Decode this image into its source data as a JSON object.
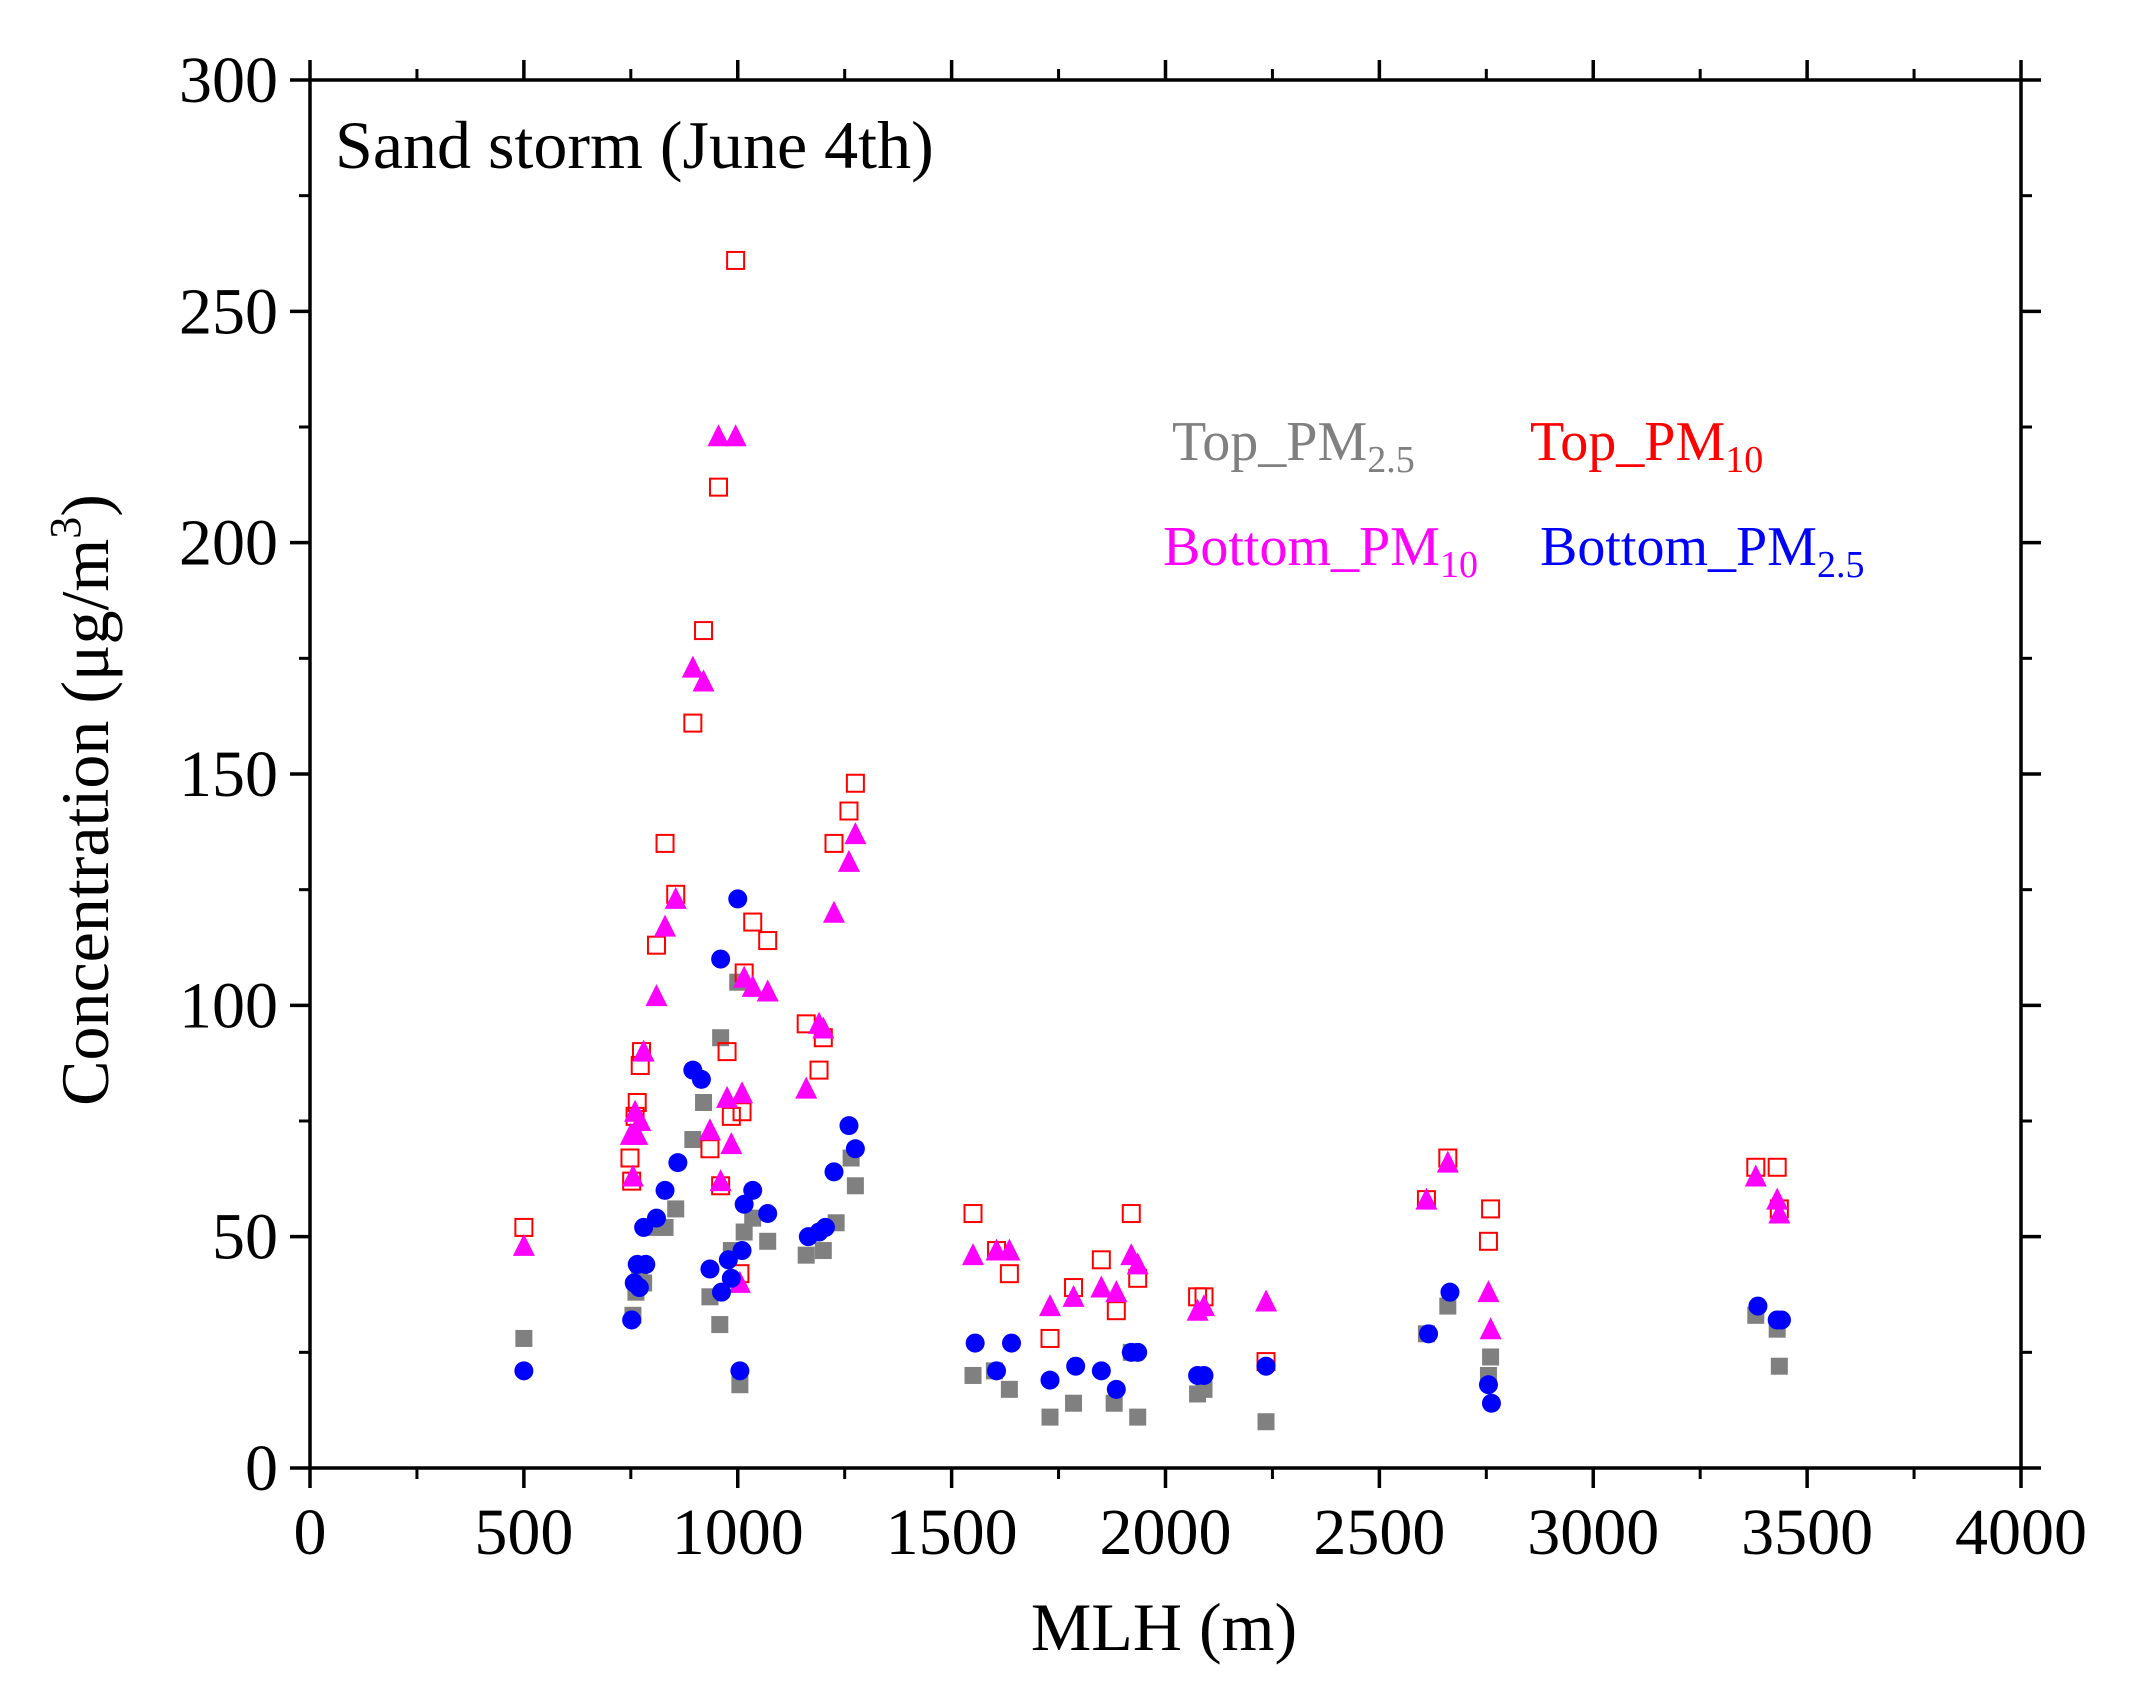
{
  "chart_data": {
    "type": "scatter",
    "title": "Sand storm (June 4th)",
    "xlabel": "MLH (m)",
    "ylabel": "Concentration (μg/m³)",
    "ylabel_parts": {
      "main": "Concentration (μg/m",
      "sup": "3",
      "close": ")"
    },
    "xlim": [
      0,
      4000
    ],
    "ylim": [
      0,
      300
    ],
    "xticks": [
      0,
      500,
      1000,
      1500,
      2000,
      2500,
      3000,
      3500,
      4000
    ],
    "yticks": [
      0,
      50,
      100,
      150,
      200,
      250,
      300
    ],
    "grid": false,
    "legend_position": "upper-center",
    "series": [
      {
        "name": "Top_PM2.5",
        "label": {
          "main": "Top_PM",
          "sub": "2.5"
        },
        "color": "#808080",
        "marker": "filled-square",
        "points": [
          [
            500,
            28
          ],
          [
            755,
            33
          ],
          [
            762,
            38
          ],
          [
            770,
            42
          ],
          [
            780,
            40
          ],
          [
            810,
            52
          ],
          [
            830,
            52
          ],
          [
            855,
            56
          ],
          [
            895,
            71
          ],
          [
            920,
            79
          ],
          [
            935,
            37
          ],
          [
            958,
            31
          ],
          [
            960,
            93
          ],
          [
            985,
            47
          ],
          [
            1000,
            105
          ],
          [
            1005,
            18
          ],
          [
            1015,
            51
          ],
          [
            1035,
            54
          ],
          [
            1070,
            49
          ],
          [
            1160,
            46
          ],
          [
            1200,
            47
          ],
          [
            1230,
            53
          ],
          [
            1265,
            67
          ],
          [
            1275,
            61
          ],
          [
            1550,
            20
          ],
          [
            1600,
            21
          ],
          [
            1635,
            17
          ],
          [
            1730,
            11
          ],
          [
            1785,
            14
          ],
          [
            1880,
            14
          ],
          [
            1920,
            25
          ],
          [
            1935,
            11
          ],
          [
            2075,
            16
          ],
          [
            2090,
            17
          ],
          [
            2235,
            10
          ],
          [
            2610,
            29
          ],
          [
            2660,
            35
          ],
          [
            2755,
            20
          ],
          [
            2760,
            24
          ],
          [
            3380,
            33
          ],
          [
            3430,
            30
          ],
          [
            3435,
            22
          ]
        ]
      },
      {
        "name": "Top_PM10",
        "label": {
          "main": "Top_PM",
          "sub": "10"
        },
        "color": "#ff0000",
        "marker": "open-square",
        "points": [
          [
            500,
            52
          ],
          [
            748,
            67
          ],
          [
            752,
            62
          ],
          [
            760,
            76
          ],
          [
            765,
            79
          ],
          [
            772,
            87
          ],
          [
            775,
            90
          ],
          [
            810,
            113
          ],
          [
            830,
            135
          ],
          [
            855,
            124
          ],
          [
            895,
            161
          ],
          [
            920,
            181
          ],
          [
            935,
            69
          ],
          [
            955,
            212
          ],
          [
            960,
            61
          ],
          [
            975,
            90
          ],
          [
            985,
            76
          ],
          [
            995,
            261
          ],
          [
            1005,
            42
          ],
          [
            1010,
            77
          ],
          [
            1015,
            107
          ],
          [
            1035,
            118
          ],
          [
            1070,
            114
          ],
          [
            1160,
            96
          ],
          [
            1190,
            86
          ],
          [
            1200,
            93
          ],
          [
            1225,
            135
          ],
          [
            1260,
            142
          ],
          [
            1275,
            148
          ],
          [
            1550,
            55
          ],
          [
            1605,
            47
          ],
          [
            1635,
            42
          ],
          [
            1730,
            28
          ],
          [
            1785,
            39
          ],
          [
            1850,
            45
          ],
          [
            1885,
            34
          ],
          [
            1920,
            55
          ],
          [
            1935,
            41
          ],
          [
            2075,
            37
          ],
          [
            2090,
            37
          ],
          [
            2235,
            23
          ],
          [
            2610,
            58
          ],
          [
            2660,
            67
          ],
          [
            2755,
            49
          ],
          [
            2760,
            56
          ],
          [
            3380,
            65
          ],
          [
            3430,
            65
          ],
          [
            3435,
            56
          ]
        ]
      },
      {
        "name": "Bottom_PM10",
        "label": {
          "main": "Bottom_PM",
          "sub": "10"
        },
        "color": "#ff00ff",
        "marker": "filled-triangle",
        "points": [
          [
            500,
            48
          ],
          [
            750,
            72
          ],
          [
            755,
            63
          ],
          [
            760,
            77
          ],
          [
            765,
            72
          ],
          [
            772,
            75
          ],
          [
            780,
            90
          ],
          [
            810,
            102
          ],
          [
            830,
            117
          ],
          [
            855,
            123
          ],
          [
            895,
            173
          ],
          [
            920,
            170
          ],
          [
            935,
            73
          ],
          [
            955,
            223
          ],
          [
            960,
            62
          ],
          [
            975,
            80
          ],
          [
            985,
            70
          ],
          [
            995,
            223
          ],
          [
            1005,
            40
          ],
          [
            1010,
            81
          ],
          [
            1015,
            106
          ],
          [
            1035,
            104
          ],
          [
            1070,
            103
          ],
          [
            1160,
            82
          ],
          [
            1190,
            96
          ],
          [
            1200,
            95
          ],
          [
            1225,
            120
          ],
          [
            1260,
            131
          ],
          [
            1275,
            137
          ],
          [
            1550,
            46
          ],
          [
            1605,
            47
          ],
          [
            1635,
            47
          ],
          [
            1730,
            35
          ],
          [
            1785,
            37
          ],
          [
            1850,
            39
          ],
          [
            1885,
            38
          ],
          [
            1920,
            46
          ],
          [
            1935,
            44
          ],
          [
            2075,
            34
          ],
          [
            2090,
            35
          ],
          [
            2235,
            36
          ],
          [
            2610,
            58
          ],
          [
            2660,
            66
          ],
          [
            2755,
            38
          ],
          [
            2760,
            30
          ],
          [
            3380,
            63
          ],
          [
            3430,
            58
          ],
          [
            3435,
            55
          ]
        ]
      },
      {
        "name": "Bottom_PM2.5",
        "label": {
          "main": "Bottom_PM",
          "sub": "2.5"
        },
        "color": "#0000ff",
        "marker": "filled-circle",
        "points": [
          [
            500,
            21
          ],
          [
            752,
            32
          ],
          [
            758,
            40
          ],
          [
            765,
            44
          ],
          [
            770,
            39
          ],
          [
            780,
            52
          ],
          [
            785,
            44
          ],
          [
            810,
            54
          ],
          [
            830,
            60
          ],
          [
            860,
            66
          ],
          [
            895,
            86
          ],
          [
            915,
            84
          ],
          [
            935,
            43
          ],
          [
            960,
            110
          ],
          [
            962,
            38
          ],
          [
            978,
            45
          ],
          [
            985,
            41
          ],
          [
            1000,
            123
          ],
          [
            1005,
            21
          ],
          [
            1010,
            47
          ],
          [
            1015,
            57
          ],
          [
            1035,
            60
          ],
          [
            1070,
            55
          ],
          [
            1165,
            50
          ],
          [
            1190,
            51
          ],
          [
            1205,
            52
          ],
          [
            1225,
            64
          ],
          [
            1260,
            74
          ],
          [
            1275,
            69
          ],
          [
            1555,
            27
          ],
          [
            1605,
            21
          ],
          [
            1640,
            27
          ],
          [
            1730,
            19
          ],
          [
            1790,
            22
          ],
          [
            1850,
            21
          ],
          [
            1885,
            17
          ],
          [
            1920,
            25
          ],
          [
            1935,
            25
          ],
          [
            2075,
            20
          ],
          [
            2090,
            20
          ],
          [
            2235,
            22
          ],
          [
            2615,
            29
          ],
          [
            2665,
            38
          ],
          [
            2755,
            18
          ],
          [
            2762,
            14
          ],
          [
            3385,
            35
          ],
          [
            3430,
            32
          ],
          [
            3440,
            32
          ]
        ]
      }
    ]
  }
}
